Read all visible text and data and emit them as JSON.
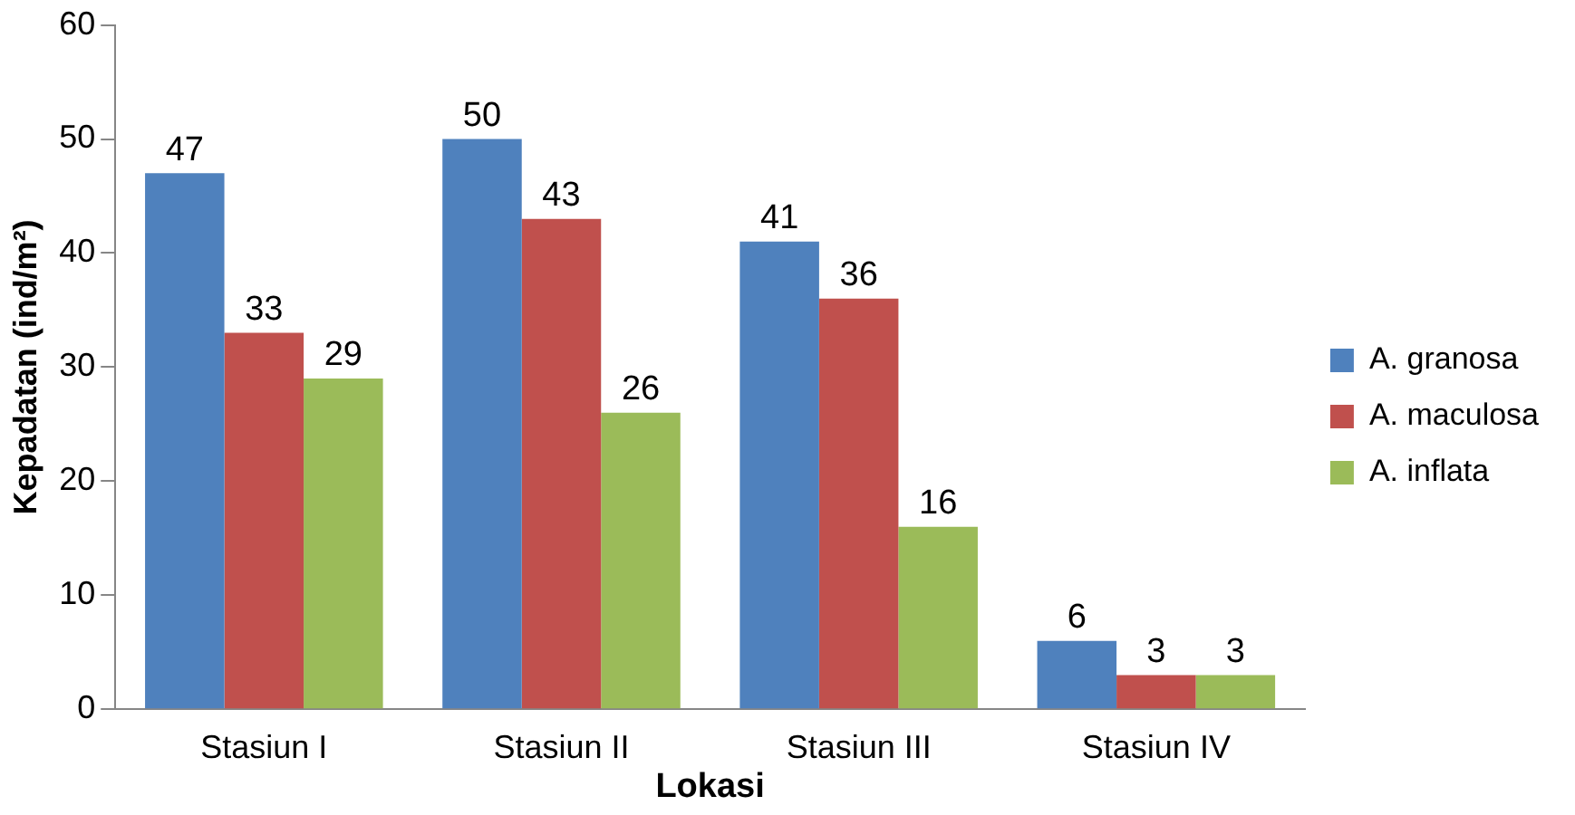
{
  "chart_data": {
    "type": "bar",
    "xlabel": "Lokasi",
    "ylabel": "Kepadatan (ind/m²)",
    "categories": [
      "Stasiun I",
      "Stasiun II",
      "Stasiun III",
      "Stasiun IV"
    ],
    "series": [
      {
        "name": "A. granosa",
        "color": "#4f81bd",
        "values": [
          47,
          50,
          41,
          6
        ]
      },
      {
        "name": "A. maculosa",
        "color": "#c0504d",
        "values": [
          33,
          43,
          36,
          3
        ]
      },
      {
        "name": "A. inflata",
        "color": "#9bbb59",
        "values": [
          29,
          26,
          16,
          3
        ]
      }
    ],
    "ylim": [
      0,
      60
    ],
    "yticks": [
      0,
      10,
      20,
      30,
      40,
      50,
      60
    ],
    "grid": false,
    "legend": "right",
    "data_labels": true
  }
}
